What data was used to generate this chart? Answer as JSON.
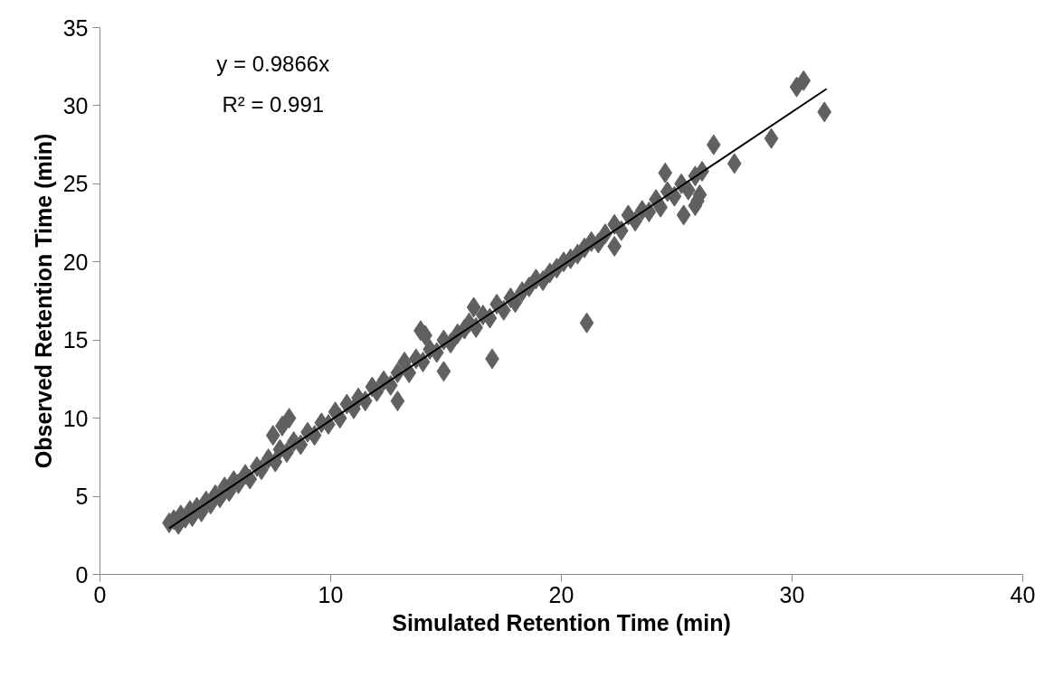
{
  "chart_data": {
    "type": "scatter",
    "xlabel": "Simulated Retention Time (min)",
    "ylabel": "Observed Retention Time (min)",
    "annotations": [
      "y = 0.9866x",
      "R² = 0.991"
    ],
    "xlim": [
      0,
      40
    ],
    "xticks": [
      0,
      10,
      20,
      30,
      40
    ],
    "ylim": [
      0,
      35
    ],
    "yticks": [
      0,
      5,
      10,
      15,
      20,
      25,
      30,
      35
    ],
    "grid": false,
    "marker": "diamond",
    "series": [
      {
        "color": "#606060",
        "x": [
          3.0,
          3.2,
          3.4,
          3.5,
          3.7,
          3.9,
          4.0,
          4.2,
          4.4,
          4.6,
          4.8,
          5.0,
          5.2,
          5.4,
          5.6,
          5.8,
          6.0,
          6.3,
          6.5,
          6.8,
          7.0,
          7.3,
          7.6,
          7.8,
          8.1,
          8.4,
          8.7,
          9.0,
          9.3,
          9.6,
          9.9,
          10.2,
          10.4,
          10.7,
          11.0,
          11.2,
          11.5,
          11.8,
          12.0,
          12.3,
          12.6,
          12.9,
          13.2,
          13.4,
          13.7,
          14.0,
          14.3,
          14.6,
          14.9,
          15.2,
          15.5,
          15.8,
          16.0,
          16.3,
          16.6,
          16.9,
          17.2,
          17.5,
          17.8,
          18.0,
          18.3,
          18.6,
          18.9,
          19.2,
          19.5,
          19.8,
          20.1,
          20.4,
          20.7,
          21.0,
          21.3,
          21.6,
          21.9,
          22.3,
          22.6,
          22.9,
          23.2,
          23.5,
          23.8,
          24.1,
          24.3,
          24.6,
          24.9,
          25.2,
          25.5,
          25.8,
          26.1,
          25.9,
          21.1,
          17.0,
          14.9,
          12.9,
          8.2,
          7.9,
          7.5,
          13.9,
          14.1,
          16.2,
          24.5,
          26.6,
          27.5,
          29.1,
          30.2,
          30.5,
          31.4,
          25.3,
          25.8,
          22.3,
          26.0
        ],
        "values": [
          3.3,
          3.5,
          3.2,
          3.8,
          3.6,
          4.1,
          3.7,
          4.3,
          4.0,
          4.7,
          4.5,
          5.1,
          4.9,
          5.6,
          5.3,
          6.0,
          5.8,
          6.4,
          6.1,
          6.9,
          6.7,
          7.4,
          7.2,
          8.0,
          7.8,
          8.5,
          8.3,
          9.1,
          8.9,
          9.7,
          9.6,
          10.4,
          10.0,
          10.9,
          10.6,
          11.3,
          11.1,
          12.0,
          11.7,
          12.4,
          12.1,
          12.9,
          13.6,
          12.9,
          13.8,
          13.6,
          14.4,
          14.2,
          15.0,
          14.8,
          15.4,
          15.7,
          16.1,
          15.8,
          16.6,
          16.4,
          17.3,
          16.9,
          17.7,
          17.4,
          18.1,
          18.4,
          18.9,
          18.8,
          19.3,
          19.6,
          20.0,
          20.2,
          20.5,
          20.9,
          21.3,
          21.2,
          21.8,
          22.4,
          22.0,
          23.0,
          22.6,
          23.3,
          23.2,
          24.0,
          23.5,
          24.5,
          24.2,
          25.0,
          24.6,
          25.5,
          25.8,
          23.9,
          16.1,
          13.8,
          13.0,
          11.1,
          10.0,
          9.5,
          8.9,
          15.6,
          15.3,
          17.1,
          25.7,
          27.5,
          26.3,
          27.9,
          31.2,
          31.6,
          29.6,
          23.0,
          23.6,
          21.0,
          24.3
        ]
      },
      {
        "type": "line",
        "color": "#000000",
        "marker": "none",
        "x": [
          3.0,
          31.5
        ],
        "values": [
          2.96,
          31.08
        ]
      }
    ]
  }
}
